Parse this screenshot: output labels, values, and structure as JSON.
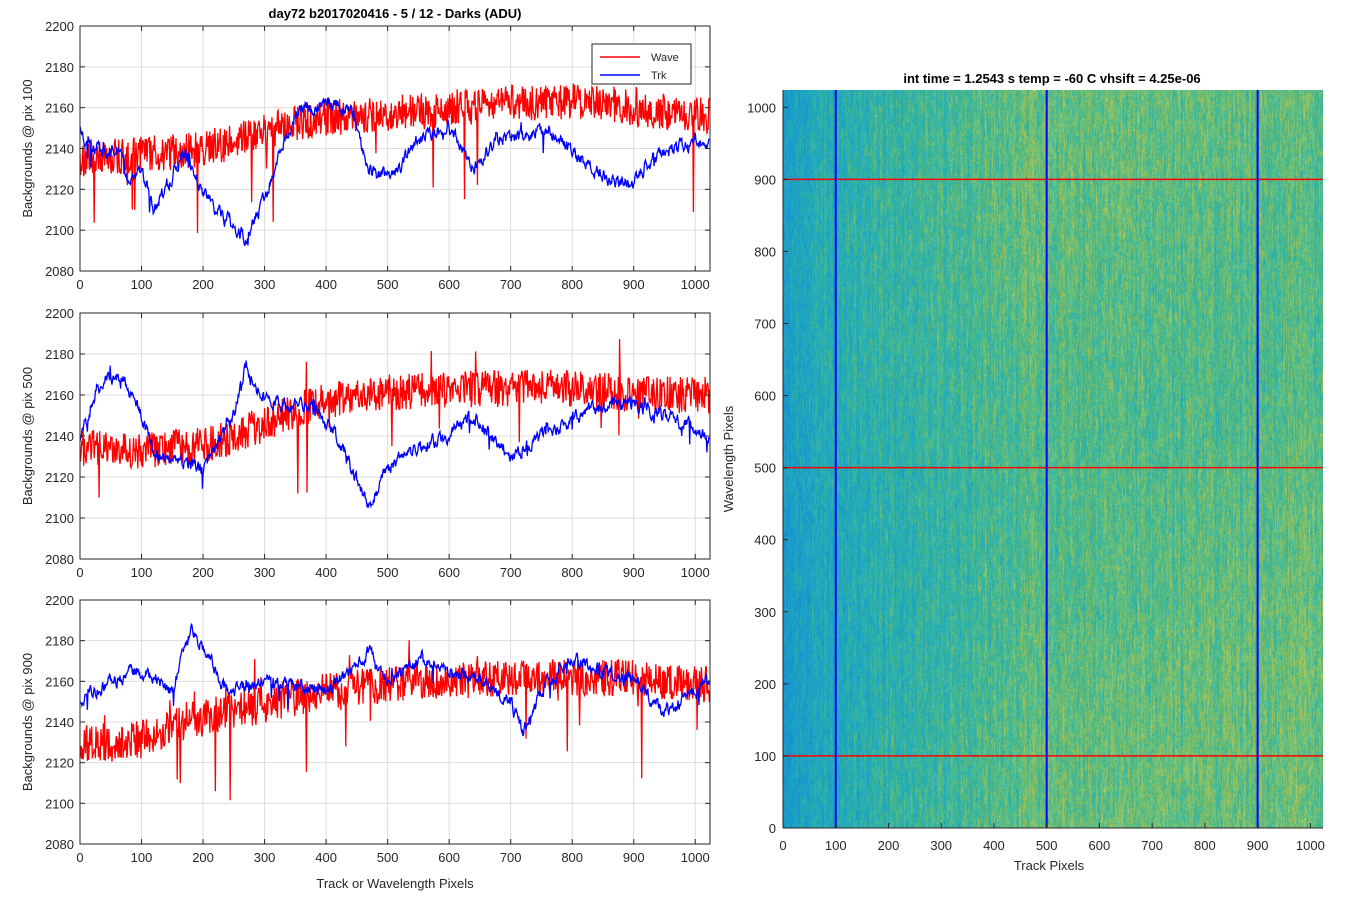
{
  "figure": {
    "title": "day72 b2017020416 - 5 / 12 - Darks (ADU)",
    "heatmap_title": "int time = 1.2543 s    temp = -60 C    vhsift = 4.25e-06"
  },
  "colors": {
    "wave": "#ff0000",
    "trk": "#0000ff",
    "grid": "#dcdcdc",
    "axis": "#262626",
    "heat_low": "#1aa0d0",
    "heat_mid": "#3fb39a",
    "heat_high": "#b5c25a"
  },
  "chart_data": [
    {
      "type": "line",
      "title": "day72 b2017020416 - 5 / 12 - Darks (ADU)",
      "xlabel": "",
      "ylabel": "Backgrounds @ pix 100",
      "xlim": [
        0,
        1024
      ],
      "ylim": [
        2080,
        2200
      ],
      "xticks": [
        0,
        100,
        200,
        300,
        400,
        500,
        600,
        700,
        800,
        900,
        1000
      ],
      "yticks": [
        2080,
        2100,
        2120,
        2140,
        2160,
        2180,
        2200
      ],
      "grid": true,
      "legend": "top-right",
      "series": [
        {
          "name": "Wave",
          "color": "#ff0000",
          "n_points": 1024,
          "anchors_x": [
            0,
            50,
            100,
            150,
            200,
            250,
            300,
            350,
            400,
            450,
            500,
            550,
            600,
            650,
            700,
            750,
            800,
            850,
            900,
            950,
            1024
          ],
          "anchors_y": [
            2135,
            2136,
            2137,
            2138,
            2140,
            2143,
            2148,
            2152,
            2155,
            2156,
            2157,
            2158,
            2160,
            2161,
            2162,
            2163,
            2163,
            2162,
            2160,
            2158,
            2156
          ],
          "noise": 9,
          "spike": 45
        },
        {
          "name": "Trk",
          "color": "#0000ff",
          "n_points": 1024,
          "anchors_x": [
            0,
            20,
            60,
            80,
            100,
            120,
            170,
            200,
            240,
            270,
            300,
            330,
            360,
            380,
            410,
            440,
            470,
            510,
            550,
            600,
            640,
            680,
            720,
            760,
            800,
            860,
            900,
            930,
            960,
            1024
          ],
          "anchors_y": [
            2150,
            2140,
            2138,
            2125,
            2130,
            2110,
            2138,
            2118,
            2105,
            2097,
            2115,
            2140,
            2160,
            2160,
            2162,
            2160,
            2128,
            2127,
            2145,
            2150,
            2130,
            2145,
            2146,
            2150,
            2138,
            2125,
            2124,
            2135,
            2140,
            2143
          ],
          "noise": 3.5,
          "spike": 10
        }
      ]
    },
    {
      "type": "line",
      "title": "",
      "xlabel": "",
      "ylabel": "Backgrounds @ pix 500",
      "xlim": [
        0,
        1024
      ],
      "ylim": [
        2080,
        2200
      ],
      "xticks": [
        0,
        100,
        200,
        300,
        400,
        500,
        600,
        700,
        800,
        900,
        1000
      ],
      "yticks": [
        2080,
        2100,
        2120,
        2140,
        2160,
        2180,
        2200
      ],
      "grid": true,
      "series": [
        {
          "name": "Wave",
          "color": "#ff0000",
          "n_points": 1024,
          "anchors_x": [
            0,
            50,
            100,
            150,
            200,
            250,
            300,
            350,
            400,
            450,
            500,
            550,
            600,
            650,
            700,
            750,
            800,
            850,
            900,
            950,
            1024
          ],
          "anchors_y": [
            2136,
            2134,
            2133,
            2134,
            2136,
            2140,
            2146,
            2152,
            2157,
            2160,
            2161,
            2162,
            2162,
            2163,
            2163,
            2164,
            2163,
            2162,
            2160,
            2160,
            2160
          ],
          "noise": 9,
          "spike": 45
        },
        {
          "name": "Trk",
          "color": "#0000ff",
          "n_points": 1024,
          "anchors_x": [
            0,
            30,
            60,
            90,
            120,
            150,
            200,
            250,
            270,
            300,
            340,
            380,
            420,
            470,
            500,
            550,
            600,
            640,
            700,
            750,
            800,
            850,
            900,
            950,
            1024
          ],
          "anchors_y": [
            2140,
            2165,
            2170,
            2160,
            2132,
            2128,
            2125,
            2150,
            2175,
            2157,
            2155,
            2155,
            2138,
            2105,
            2125,
            2135,
            2140,
            2150,
            2130,
            2140,
            2148,
            2155,
            2155,
            2150,
            2140
          ],
          "noise": 3.5,
          "spike": 10
        }
      ]
    },
    {
      "type": "line",
      "title": "",
      "xlabel": "Track or Wavelength Pixels",
      "ylabel": "Backgrounds @ pix 900",
      "xlim": [
        0,
        1024
      ],
      "ylim": [
        2080,
        2200
      ],
      "xticks": [
        0,
        100,
        200,
        300,
        400,
        500,
        600,
        700,
        800,
        900,
        1000
      ],
      "yticks": [
        2080,
        2100,
        2120,
        2140,
        2160,
        2180,
        2200
      ],
      "grid": true,
      "series": [
        {
          "name": "Wave",
          "color": "#ff0000",
          "n_points": 1024,
          "anchors_x": [
            0,
            50,
            100,
            150,
            200,
            250,
            300,
            350,
            400,
            450,
            500,
            550,
            600,
            650,
            700,
            750,
            800,
            850,
            900,
            950,
            1024
          ],
          "anchors_y": [
            2130,
            2128,
            2132,
            2138,
            2142,
            2146,
            2148,
            2152,
            2155,
            2157,
            2158,
            2160,
            2160,
            2161,
            2162,
            2162,
            2162,
            2162,
            2162,
            2160,
            2158
          ],
          "noise": 9,
          "spike": 45
        },
        {
          "name": "Trk",
          "color": "#0000ff",
          "n_points": 1024,
          "anchors_x": [
            0,
            50,
            100,
            150,
            180,
            210,
            240,
            300,
            350,
            400,
            440,
            470,
            500,
            550,
            600,
            650,
            700,
            720,
            760,
            800,
            850,
            900,
            950,
            1024
          ],
          "anchors_y": [
            2150,
            2160,
            2165,
            2155,
            2185,
            2172,
            2155,
            2160,
            2158,
            2155,
            2165,
            2175,
            2160,
            2170,
            2165,
            2160,
            2150,
            2135,
            2160,
            2172,
            2165,
            2160,
            2145,
            2160
          ],
          "noise": 3.5,
          "spike": 10
        }
      ]
    },
    {
      "type": "heatmap",
      "title": "int time = 1.2543 s    temp = -60 C    vhsift = 4.25e-06",
      "xlabel": "Track Pixels",
      "ylabel": "Wavelength Pixels",
      "xlim": [
        0,
        1024
      ],
      "ylim": [
        0,
        1024
      ],
      "xticks": [
        0,
        100,
        200,
        300,
        400,
        500,
        600,
        700,
        800,
        900,
        1000
      ],
      "yticks": [
        0,
        100,
        200,
        300,
        400,
        500,
        600,
        700,
        800,
        900,
        1000
      ],
      "colormap": "parula",
      "markers": {
        "vertical_lines_x": [
          100,
          500,
          900
        ],
        "vertical_color": "#0000ff",
        "horizontal_lines_y": [
          100,
          500,
          900
        ],
        "horizontal_color": "#ff0000"
      }
    }
  ]
}
